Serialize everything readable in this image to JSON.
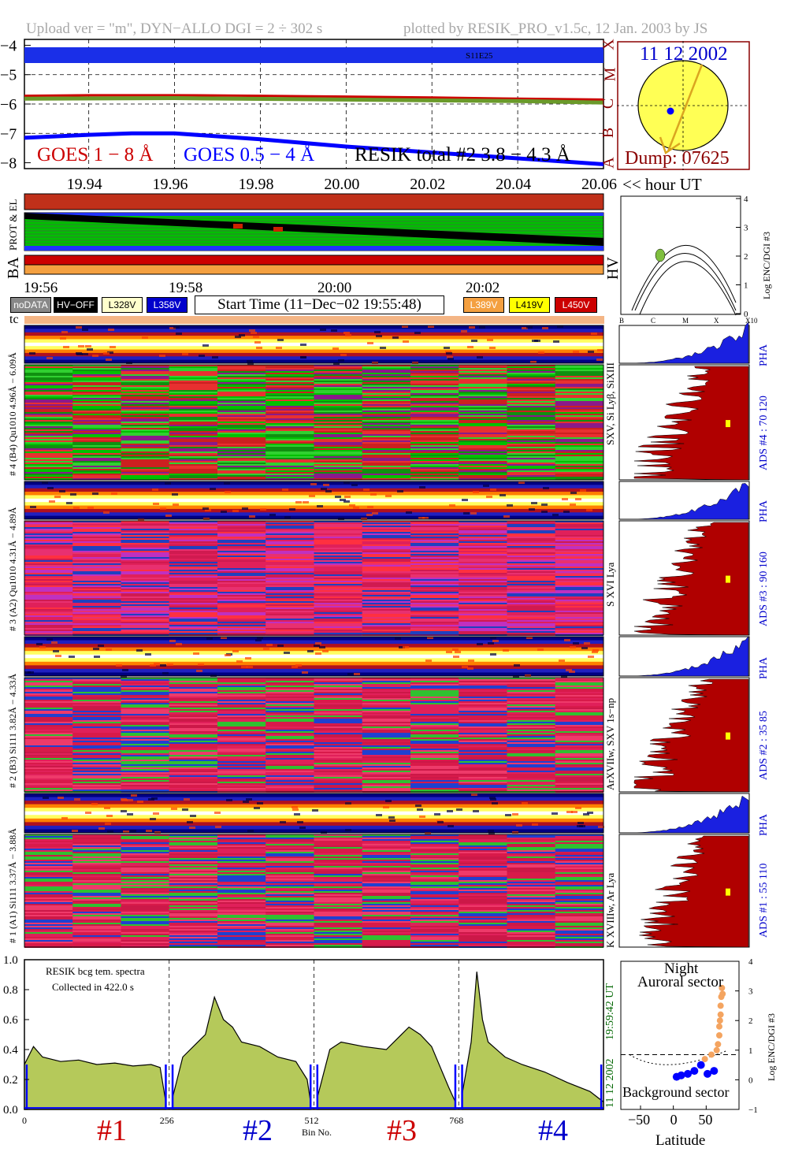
{
  "header": {
    "left": "Upload ver = \"m\", DYN−ALLO DGI =   2 ÷ 302 s",
    "right": "plotted by RESIK_PRO_v1.5c, 12 Jan. 2003 by JS"
  },
  "goes": {
    "y_ticks": [
      "−4",
      "−5",
      "−6",
      "−7",
      "−8"
    ],
    "flare_class_labels": [
      "X",
      "M",
      "C",
      "B",
      "A"
    ],
    "event_label": "S11E25",
    "legend_goes_long": "GOES 1 − 8 Å",
    "legend_goes_short": "GOES 0.5 − 4 Å",
    "legend_resik": "RESIK total #2  3.8 − 4.3 Å",
    "x_ticks": [
      "19.94",
      "19.96",
      "19.98",
      "20.00",
      "20.02",
      "20.04",
      "20.06"
    ],
    "x_unit": "<< hour UT",
    "colors": {
      "goes_long": "#cc0000",
      "goes_short": "#0000ff",
      "resik": "#6a9a2a"
    }
  },
  "sun": {
    "date": "11 12 2002",
    "dump": "Dump: 07625",
    "colors": {
      "disk": "#ffff55",
      "frame": "#8b0000",
      "arrow": "#daa520"
    }
  },
  "status": {
    "label_prot": "PROT & EL",
    "label_ba": "BA",
    "label_hv": "HV",
    "time_ticks": [
      "19:56",
      "19:58",
      "20:00",
      "20:02"
    ],
    "buttons": {
      "nodata": "noDATA",
      "hvoff": "HV−OFF",
      "l328": "L328V",
      "l358": "L358V",
      "l389": "L389V",
      "l419": "L419V",
      "l450": "L450V"
    },
    "start_time": "Start Time (11−Dec−02 19:55:48)",
    "tc_label": "tc"
  },
  "hv_plot": {
    "y_ticks": [
      "4",
      "3",
      "2",
      "1",
      "0"
    ],
    "x_ticks": [
      "B",
      "C",
      "M",
      "X",
      "X10"
    ],
    "ylabel": "Log ENC/DGI #3"
  },
  "spectrograms": [
    {
      "pha_label": "# 4 (B4) Qu1010  4.96Å − 6.09Å",
      "line_label": "SXV, Si Lyβ, SiXIII",
      "ads_label": "ADS #4 :   70 120",
      "pha_tag": "PHA"
    },
    {
      "pha_label": "# 3 (A2) Qu1010  4.31Å − 4.89Å",
      "line_label": "S XVI Lya",
      "ads_label": "ADS #3 :   90 160",
      "pha_tag": "PHA"
    },
    {
      "pha_label": "# 2 (B3) Si111  3.82Å − 4.33Å",
      "line_label": "ArXVIIw, SXV 1s−np",
      "ads_label": "ADS #2 :   35  85",
      "pha_tag": "PHA"
    },
    {
      "pha_label": "# 1 (A1) Si111  3.37Å − 3.88Å",
      "line_label": "K XVIIIw, Ar Lya",
      "ads_label": "ADS #1 :   55 110",
      "pha_tag": "PHA"
    }
  ],
  "spectrum": {
    "title1": "RESIK bcg tem. spectra",
    "title2": "Collected in    422.0 s",
    "time": "19:59:42 UT",
    "date": "11 12 2002",
    "channel_labels": [
      "#1",
      "#2",
      "#3",
      "#4"
    ],
    "channel_colors": [
      "#cc0000",
      "#0000cc",
      "#cc0000",
      "#0000cc"
    ],
    "fill_color": "#b5c95a"
  },
  "latitude_plot": {
    "title1": "Night",
    "title2": "Auroral sector",
    "label_bottom": "Background sector",
    "y_ticks": [
      "4",
      "3",
      "2",
      "1",
      "0",
      "−1"
    ],
    "ylabel": "Log ENC/DGI #3"
  },
  "chart_data": [
    {
      "type": "line",
      "title": "",
      "xlabel": "hour UT",
      "x_range": [
        19.925,
        20.06
      ],
      "ylim": [
        -8.2,
        -3.8
      ],
      "y_scale": "log10 flux",
      "series": [
        {
          "name": "GOES 1 − 8 Å",
          "x": [
            19.925,
            19.94,
            19.96,
            19.98,
            20.0,
            20.02,
            20.04,
            20.06
          ],
          "y": [
            -5.72,
            -5.7,
            -5.7,
            -5.72,
            -5.75,
            -5.78,
            -5.82,
            -5.85
          ]
        },
        {
          "name": "GOES 0.5 − 4 Å",
          "x": [
            19.925,
            19.94,
            19.95,
            19.96,
            19.98,
            20.0,
            20.02,
            20.04,
            20.06
          ],
          "y": [
            -7.15,
            -7.05,
            -7.0,
            -7.0,
            -7.2,
            -7.45,
            -7.65,
            -7.85,
            -8.05
          ]
        },
        {
          "name": "RESIK total #2  3.8 − 4.3 Å",
          "x": [
            19.925,
            19.96,
            20.0,
            20.04,
            20.06
          ],
          "y": [
            -5.82,
            -5.8,
            -5.85,
            -5.9,
            -5.95
          ]
        }
      ],
      "x_ticks": [
        19.94,
        19.96,
        19.98,
        20.0,
        20.02,
        20.04,
        20.06
      ],
      "grid": true
    },
    {
      "type": "area",
      "title": "RESIK bcg tem. spectra",
      "xlabel": "Bin No.",
      "x_ticks": [
        0,
        256,
        512,
        768
      ],
      "ylim": [
        0,
        1.0
      ],
      "y_ticks": [
        0.0,
        0.2,
        0.4,
        0.6,
        0.8,
        1.0
      ],
      "series": [
        {
          "name": "#1",
          "x": [
            0,
            16,
            32,
            64,
            96,
            128,
            160,
            192,
            224,
            240,
            250
          ],
          "y": [
            0.3,
            0.42,
            0.35,
            0.32,
            0.33,
            0.3,
            0.31,
            0.29,
            0.3,
            0.28,
            0.05
          ]
        },
        {
          "name": "#2",
          "x": [
            262,
            280,
            320,
            336,
            352,
            368,
            384,
            416,
            448,
            480,
            500,
            506
          ],
          "y": [
            0.08,
            0.35,
            0.5,
            0.75,
            0.6,
            0.55,
            0.45,
            0.42,
            0.35,
            0.32,
            0.2,
            0.05
          ]
        },
        {
          "name": "#3",
          "x": [
            518,
            540,
            560,
            600,
            640,
            680,
            700,
            720,
            750,
            762
          ],
          "y": [
            0.08,
            0.4,
            0.45,
            0.42,
            0.4,
            0.55,
            0.5,
            0.42,
            0.15,
            0.05
          ]
        },
        {
          "name": "#4",
          "x": [
            774,
            790,
            800,
            810,
            820,
            850,
            880,
            920,
            960,
            1000,
            1024
          ],
          "y": [
            0.1,
            0.45,
            0.92,
            0.6,
            0.45,
            0.35,
            0.3,
            0.25,
            0.18,
            0.12,
            0.05
          ]
        }
      ]
    },
    {
      "type": "scatter",
      "xlabel": "Latitude",
      "x_ticks": [
        -50,
        0,
        50
      ],
      "ylim": [
        -1,
        4
      ],
      "y_ticks": [
        4,
        3,
        2,
        1,
        0,
        -1
      ],
      "ylabel": "Log ENC/DGI #3",
      "series": [
        {
          "name": "",
          "x": [
            5,
            12,
            22,
            32,
            42,
            52,
            62
          ],
          "y": [
            0.1,
            0.15,
            0.2,
            0.3,
            0.5,
            0.2,
            0.3
          ],
          "color": "#0000ff"
        },
        {
          "name": "",
          "x": [
            48,
            58,
            66,
            68,
            70,
            70,
            71,
            72,
            72,
            73,
            74,
            75
          ],
          "y": [
            0.7,
            0.85,
            1.0,
            1.2,
            1.5,
            1.8,
            2.0,
            2.2,
            2.5,
            2.8,
            3.1,
            2.9
          ],
          "color": "#f4a460"
        }
      ],
      "threshold_y": 0.85
    }
  ]
}
